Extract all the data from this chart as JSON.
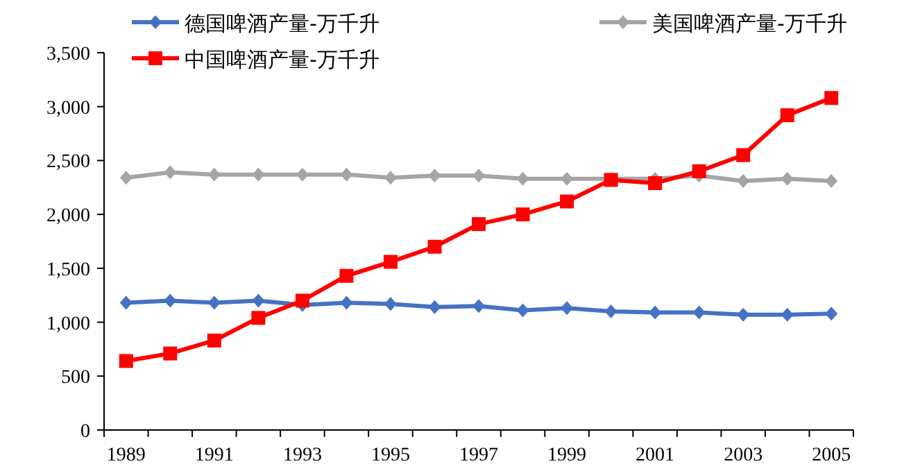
{
  "chart_data": {
    "type": "line",
    "categories": [
      "1989",
      null,
      "1991",
      null,
      "1993",
      null,
      "1995",
      null,
      "1997",
      null,
      "1999",
      null,
      "2001",
      null,
      "2003",
      null,
      "2005"
    ],
    "ylim": [
      0,
      3500
    ],
    "yticks": [
      {
        "value": 0,
        "label": "0"
      },
      {
        "value": 500,
        "label": "500"
      },
      {
        "value": 1000,
        "label": "1,000"
      },
      {
        "value": 1500,
        "label": "1,500"
      },
      {
        "value": 2000,
        "label": "2,000"
      },
      {
        "value": 2500,
        "label": "2,500"
      },
      {
        "value": 3000,
        "label": "3,000"
      },
      {
        "value": 3500,
        "label": "3,500"
      }
    ],
    "legend": "top",
    "grid": false,
    "series": [
      {
        "name": "德国啤酒产量-万千升",
        "color": "#4472c4",
        "marker": "diamond",
        "values": [
          1180,
          1200,
          1180,
          1200,
          1160,
          1180,
          1170,
          1140,
          1150,
          1110,
          1130,
          1100,
          1090,
          1090,
          1070,
          1070,
          1080
        ]
      },
      {
        "name": "美国啤酒产量-万千升",
        "color": "#a5a5a5",
        "marker": "diamond",
        "values": [
          2340,
          2390,
          2370,
          2370,
          2370,
          2370,
          2340,
          2360,
          2360,
          2330,
          2330,
          2330,
          2330,
          2360,
          2310,
          2330,
          2310
        ]
      },
      {
        "name": "中国啤酒产量-万千升",
        "color": "#ff0000",
        "marker": "square",
        "values": [
          640,
          710,
          830,
          1040,
          1200,
          1430,
          1560,
          1700,
          1910,
          2000,
          2120,
          2320,
          2290,
          2400,
          2550,
          2920,
          3080
        ]
      }
    ]
  }
}
